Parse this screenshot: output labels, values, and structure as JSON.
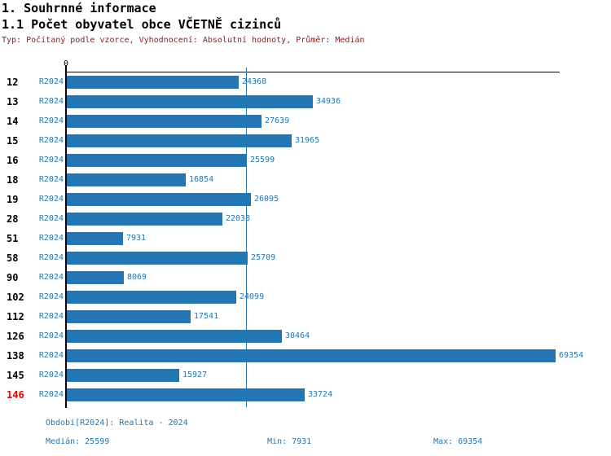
{
  "header": {
    "title": "1. Souhrnné informace",
    "subtitle": "1.1 Počet obyvatel obce VČETNĚ cizinců",
    "meta": "Typ: Počítaný podle vzorce, Vyhodnocení: Absolutní hodnoty, Průměr: Medián"
  },
  "chart_data": {
    "type": "bar",
    "orientation": "horizontal",
    "title": "1.1 Počet obyvatel obce VČETNĚ cizinců",
    "axis_zero_label": "0",
    "series_label": "R2024",
    "categories": [
      "12",
      "13",
      "14",
      "15",
      "16",
      "18",
      "19",
      "28",
      "51",
      "58",
      "90",
      "102",
      "112",
      "126",
      "138",
      "145",
      "146"
    ],
    "values": [
      24368,
      34936,
      27639,
      31965,
      25599,
      16854,
      26095,
      22038,
      7931,
      25709,
      8069,
      24099,
      17541,
      30464,
      69354,
      15927,
      33724
    ],
    "highlight_category": "146",
    "highlight_color": "#ee0000",
    "bar_color": "#2276b4",
    "median_line_value": 25599,
    "xlim": [
      0,
      69354
    ],
    "grid": "single vertical median line",
    "legend_position": "none"
  },
  "footer": {
    "period": "Období[R2024]: Realita - 2024",
    "median": "Medián: 25599",
    "min": "Min: 7931",
    "max": "Max: 69354"
  }
}
